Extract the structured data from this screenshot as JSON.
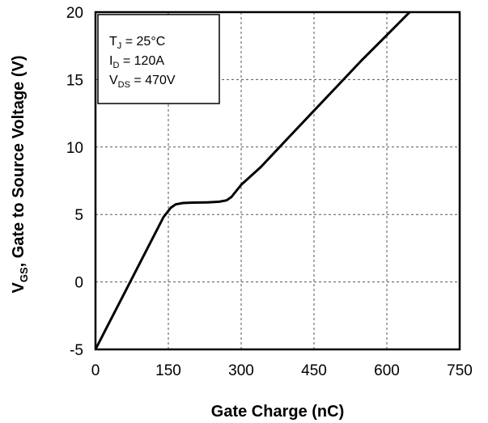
{
  "chart_data": {
    "type": "line",
    "title": "",
    "xlabel": "Gate Charge (nC)",
    "ylabel": {
      "symbol": "V",
      "subscript": "GS",
      "rest": ", Gate to Source Voltage (V)"
    },
    "xlim": [
      0,
      750
    ],
    "ylim": [
      -5,
      20
    ],
    "x_ticks": [
      0,
      150,
      300,
      450,
      600,
      750
    ],
    "y_ticks": [
      -5,
      0,
      5,
      10,
      15,
      20
    ],
    "grid": true,
    "grid_style": "dashed",
    "series": [
      {
        "color": "#000000",
        "points": [
          [
            0,
            -5
          ],
          [
            20,
            -3.6
          ],
          [
            60,
            -0.8
          ],
          [
            100,
            2.0
          ],
          [
            140,
            4.8
          ],
          [
            155,
            5.5
          ],
          [
            165,
            5.75
          ],
          [
            180,
            5.85
          ],
          [
            200,
            5.88
          ],
          [
            230,
            5.9
          ],
          [
            255,
            5.95
          ],
          [
            270,
            6.05
          ],
          [
            280,
            6.3
          ],
          [
            300,
            7.2
          ],
          [
            340,
            8.5
          ],
          [
            400,
            10.8
          ],
          [
            450,
            12.7
          ],
          [
            500,
            14.6
          ],
          [
            550,
            16.5
          ],
          [
            600,
            18.3
          ],
          [
            647,
            20
          ]
        ]
      }
    ],
    "annotation": {
      "lines": [
        {
          "main": "T",
          "sub": "J",
          "rest": " = 25°C"
        },
        {
          "main": "I",
          "sub": "D",
          "rest": " = 120A"
        },
        {
          "main": "V",
          "sub": "DS",
          "rest": " = 470V"
        }
      ]
    },
    "legend_position": "top-left"
  }
}
